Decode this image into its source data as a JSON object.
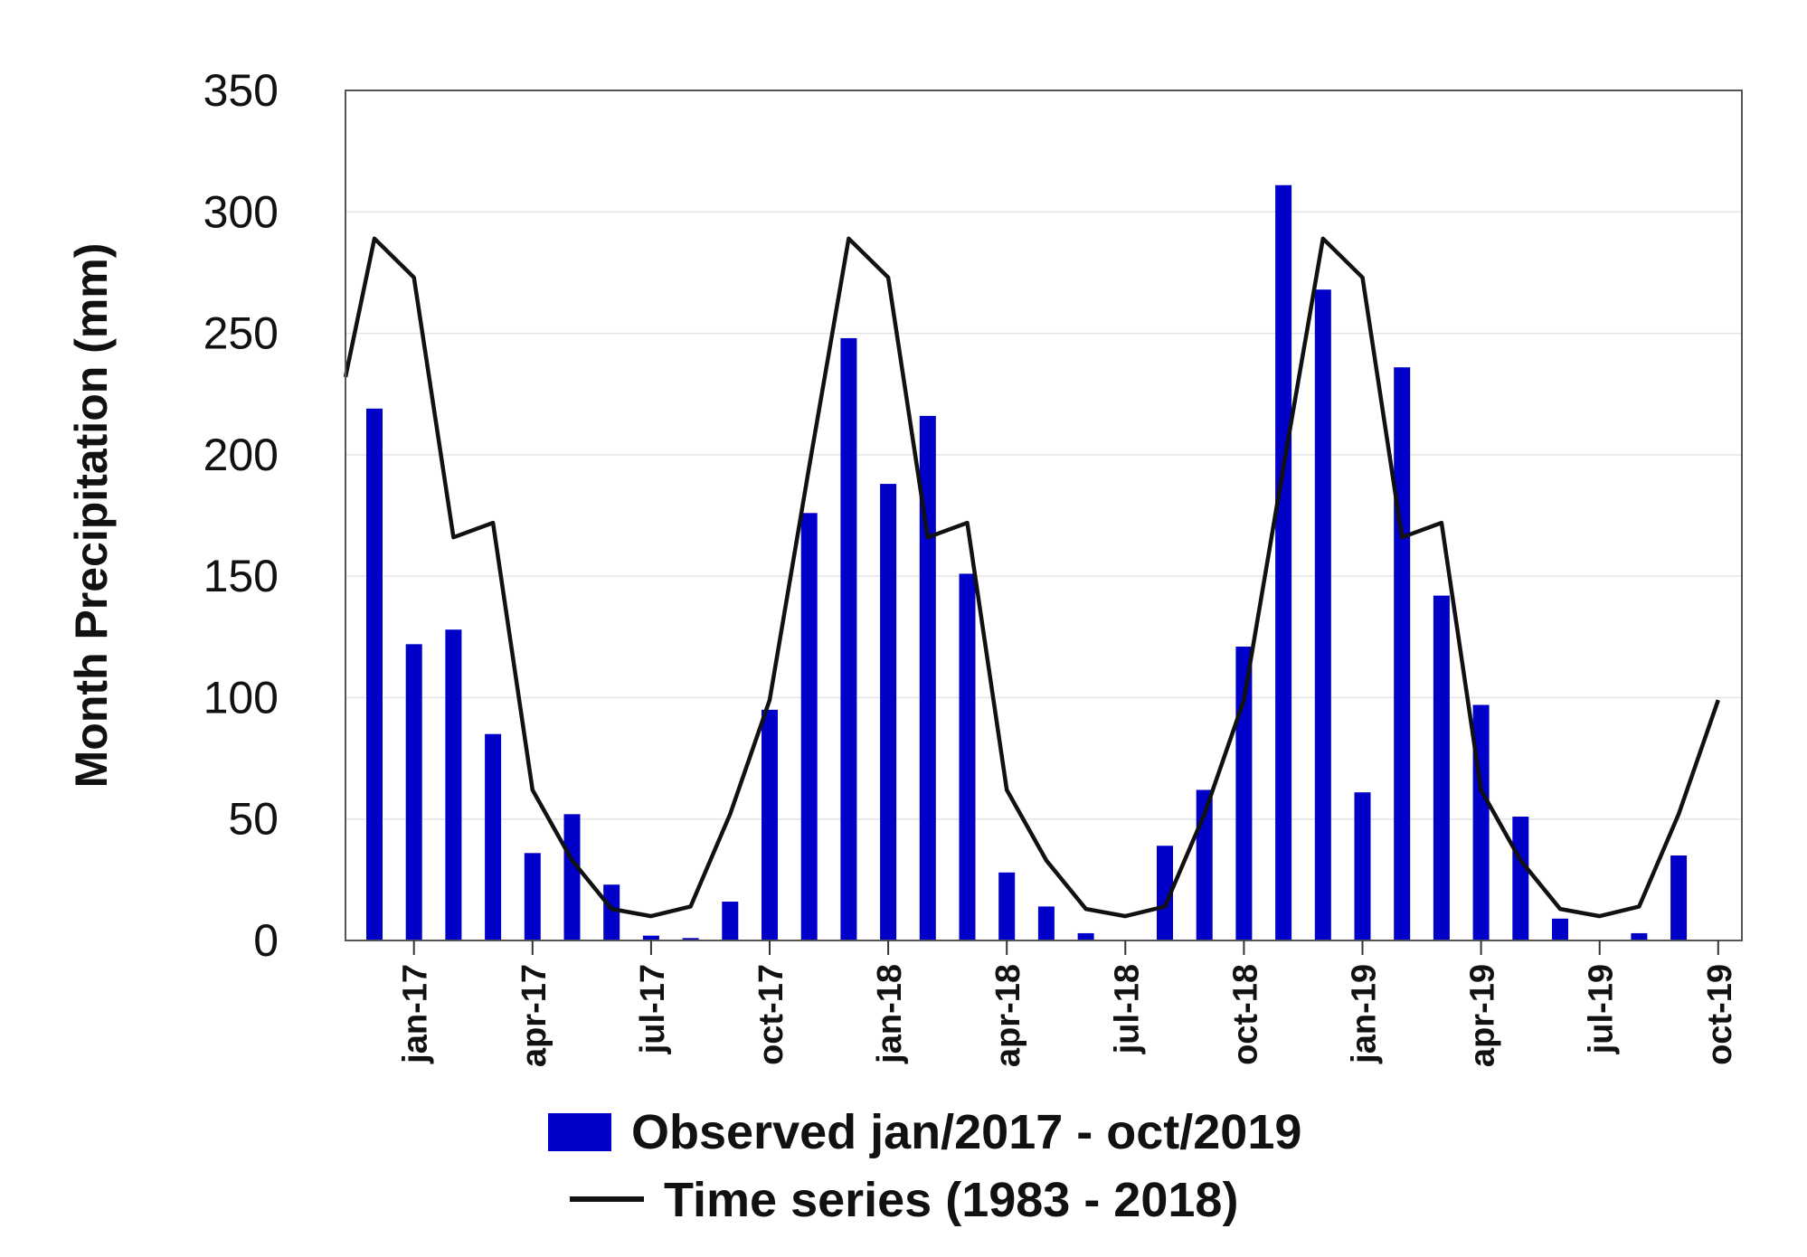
{
  "chart_data": {
    "type": "bar",
    "title": "",
    "xlabel": "",
    "ylabel": "Month Precipitation (mm)",
    "ylim": [
      0,
      350
    ],
    "yticks": [
      "0",
      "50",
      "100",
      "150",
      "200",
      "250",
      "300",
      "350"
    ],
    "grid": true,
    "categories": [
      "dec/2016",
      "jan/2017",
      "feb/2017",
      "mar/2017",
      "apr/2017",
      "may/2017",
      "jun/2017",
      "jul/2017",
      "aug/2017",
      "sep/2017",
      "oct/2017",
      "nov/2017",
      "dec/2017",
      "jan/2018",
      "feb/2018",
      "mar/2018",
      "apr/2018",
      "may/2018",
      "jun/2018",
      "jul/2018",
      "aug/2018",
      "sep/2018",
      "oct/2018",
      "nov/2018",
      "dec/2018",
      "jan/2019",
      "feb/2019",
      "mar/2019",
      "apr/2019",
      "may/2019",
      "jun/2019",
      "jul/2019",
      "aug/2019",
      "sep/2019",
      "oct/2019"
    ],
    "xtick_labels": [
      {
        "label": "jan-17",
        "index": 1
      },
      {
        "label": "apr-17",
        "index": 4
      },
      {
        "label": "jul-17",
        "index": 7
      },
      {
        "label": "oct-17",
        "index": 10
      },
      {
        "label": "jan-18",
        "index": 13
      },
      {
        "label": "apr-18",
        "index": 16
      },
      {
        "label": "jul-18",
        "index": 19
      },
      {
        "label": "oct-18",
        "index": 22
      },
      {
        "label": "jan-19",
        "index": 25
      },
      {
        "label": "apr-19",
        "index": 28
      },
      {
        "label": "jul-19",
        "index": 31
      },
      {
        "label": "oct-19",
        "index": 34
      }
    ],
    "series": [
      {
        "name": "Observed jan/2017 - oct/2019",
        "kind": "bar",
        "color": "#0000c8",
        "values": [
          219,
          122,
          128,
          85,
          36,
          52,
          23,
          2,
          1,
          16,
          95,
          176,
          248,
          188,
          216,
          151,
          28,
          14,
          3,
          0,
          39,
          62,
          121,
          311,
          268,
          61,
          236,
          142,
          97,
          51,
          9,
          0,
          3,
          35,
          0
        ]
      },
      {
        "name": "Time series (1983 - 2018)",
        "kind": "line",
        "color": "#111111",
        "values": [
          289,
          273,
          166,
          172,
          62,
          33,
          13,
          10,
          14,
          52,
          99,
          195,
          289,
          273,
          166,
          172,
          62,
          33,
          13,
          10,
          14,
          52,
          99,
          195,
          289,
          273,
          166,
          172,
          62,
          33,
          13,
          10,
          14,
          52,
          99
        ],
        "start_value": 232
      }
    ],
    "legend": {
      "placement": "bottom-center",
      "entries": [
        "Observed jan/2017 - oct/2019",
        "Time series (1983 - 2018)"
      ]
    }
  }
}
